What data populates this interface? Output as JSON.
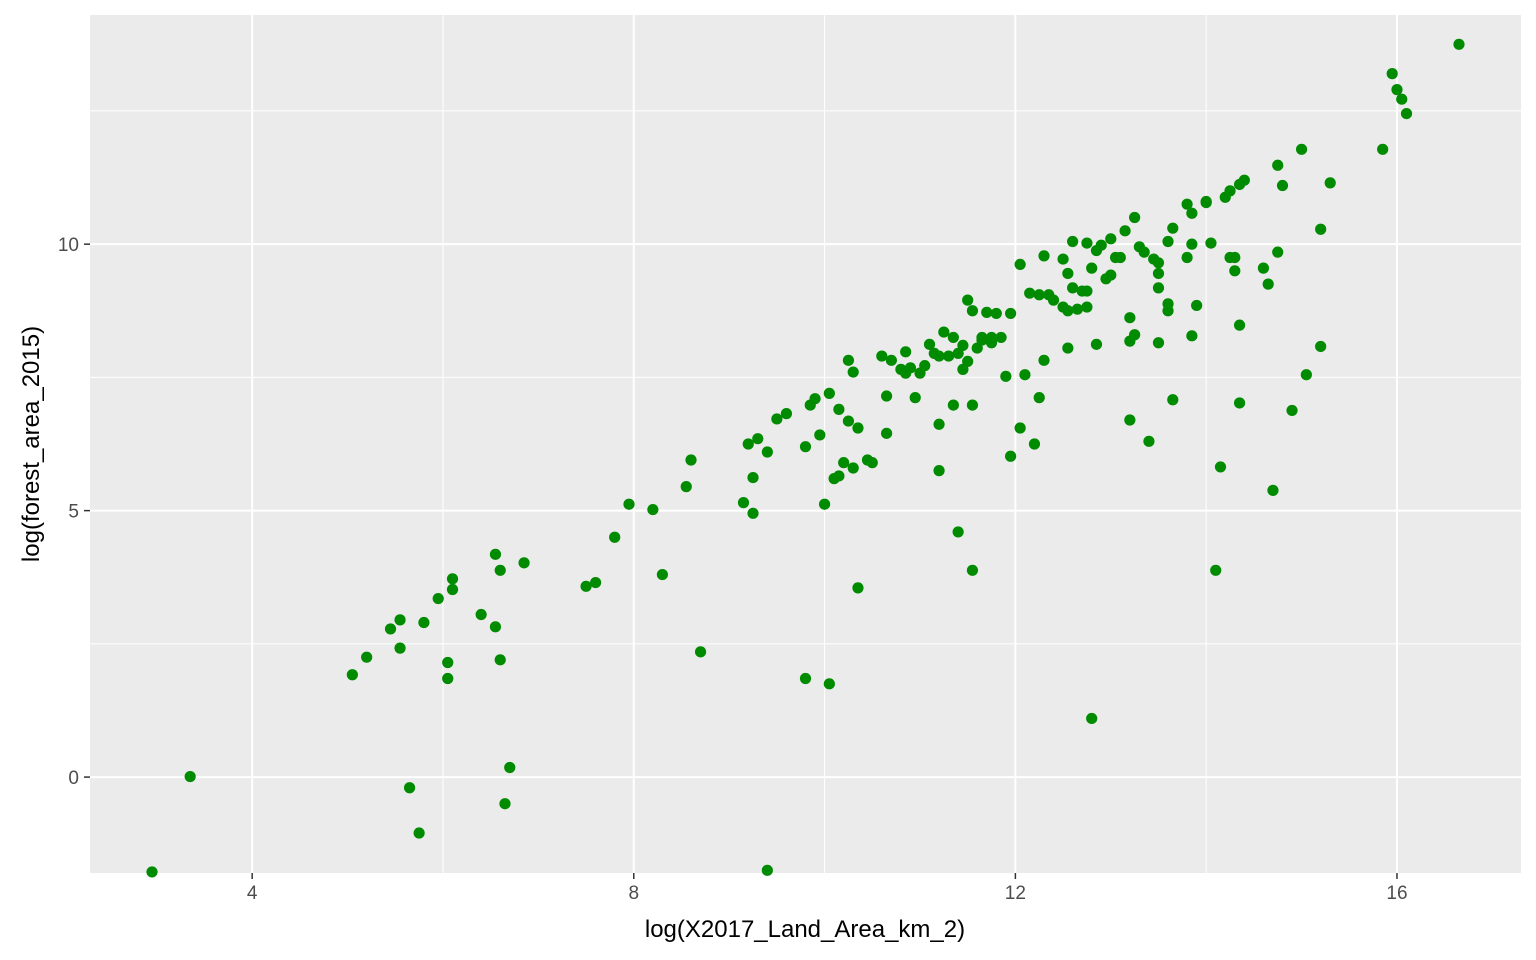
{
  "chart_data": {
    "type": "scatter",
    "xlabel": "log(X2017_Land_Area_km_2)",
    "ylabel": "log(forest_area_2015)",
    "xlim": [
      2.3,
      17.3
    ],
    "ylim": [
      -1.8,
      14.3
    ],
    "x_ticks": [
      {
        "value": 4,
        "label": "4"
      },
      {
        "value": 8,
        "label": "8"
      },
      {
        "value": 12,
        "label": "12"
      },
      {
        "value": 16,
        "label": "16"
      }
    ],
    "y_ticks": [
      {
        "value": 0,
        "label": "0"
      },
      {
        "value": 5,
        "label": "5"
      },
      {
        "value": 10,
        "label": "10"
      }
    ],
    "x_minor": [
      2,
      6,
      10,
      14
    ],
    "y_minor": [
      -2.5,
      2.5,
      7.5,
      12.5
    ],
    "grid": true,
    "panel_color": "#ebebeb",
    "point_color": "#008b00",
    "points": [
      [
        2.95,
        -1.78
      ],
      [
        3.35,
        0.01
      ],
      [
        5.05,
        1.92
      ],
      [
        5.2,
        2.25
      ],
      [
        5.45,
        2.78
      ],
      [
        5.55,
        2.95
      ],
      [
        5.55,
        2.42
      ],
      [
        5.65,
        -0.2
      ],
      [
        5.75,
        -1.05
      ],
      [
        5.8,
        2.9
      ],
      [
        5.95,
        3.35
      ],
      [
        6.05,
        2.15
      ],
      [
        6.05,
        1.85
      ],
      [
        6.1,
        3.72
      ],
      [
        6.1,
        3.52
      ],
      [
        6.4,
        3.05
      ],
      [
        6.55,
        4.18
      ],
      [
        6.55,
        2.82
      ],
      [
        6.6,
        3.88
      ],
      [
        6.6,
        2.2
      ],
      [
        6.65,
        -0.5
      ],
      [
        6.7,
        0.18
      ],
      [
        6.85,
        4.02
      ],
      [
        7.5,
        3.58
      ],
      [
        7.6,
        3.65
      ],
      [
        7.8,
        4.5
      ],
      [
        7.95,
        5.12
      ],
      [
        8.2,
        5.02
      ],
      [
        8.3,
        3.8
      ],
      [
        8.55,
        5.45
      ],
      [
        8.6,
        5.95
      ],
      [
        8.7,
        2.35
      ],
      [
        9.15,
        5.15
      ],
      [
        9.2,
        6.25
      ],
      [
        9.25,
        4.95
      ],
      [
        9.25,
        5.62
      ],
      [
        9.3,
        6.35
      ],
      [
        9.4,
        6.1
      ],
      [
        9.4,
        -1.75
      ],
      [
        9.5,
        6.72
      ],
      [
        9.6,
        6.82
      ],
      [
        9.8,
        6.2
      ],
      [
        9.8,
        1.85
      ],
      [
        9.85,
        6.98
      ],
      [
        9.9,
        7.1
      ],
      [
        9.95,
        6.42
      ],
      [
        10.0,
        5.12
      ],
      [
        10.05,
        7.2
      ],
      [
        10.05,
        1.75
      ],
      [
        10.1,
        5.6
      ],
      [
        10.15,
        6.9
      ],
      [
        10.15,
        5.65
      ],
      [
        10.2,
        5.9
      ],
      [
        10.25,
        6.68
      ],
      [
        10.25,
        7.82
      ],
      [
        10.3,
        7.6
      ],
      [
        10.3,
        5.8
      ],
      [
        10.35,
        6.55
      ],
      [
        10.35,
        3.55
      ],
      [
        10.45,
        5.95
      ],
      [
        10.5,
        5.9
      ],
      [
        10.6,
        7.9
      ],
      [
        10.65,
        7.15
      ],
      [
        10.65,
        6.45
      ],
      [
        10.7,
        7.82
      ],
      [
        10.8,
        7.65
      ],
      [
        10.85,
        7.58
      ],
      [
        10.85,
        7.98
      ],
      [
        10.9,
        7.68
      ],
      [
        10.95,
        7.12
      ],
      [
        11.0,
        7.58
      ],
      [
        11.05,
        7.72
      ],
      [
        11.1,
        8.12
      ],
      [
        11.15,
        7.95
      ],
      [
        11.2,
        6.62
      ],
      [
        11.2,
        5.75
      ],
      [
        11.2,
        7.9
      ],
      [
        11.25,
        8.35
      ],
      [
        11.3,
        7.9
      ],
      [
        11.35,
        6.98
      ],
      [
        11.35,
        8.25
      ],
      [
        11.4,
        7.95
      ],
      [
        11.4,
        4.6
      ],
      [
        11.45,
        7.65
      ],
      [
        11.45,
        8.1
      ],
      [
        11.5,
        7.8
      ],
      [
        11.5,
        8.95
      ],
      [
        11.55,
        8.75
      ],
      [
        11.55,
        6.98
      ],
      [
        11.55,
        3.88
      ],
      [
        11.6,
        8.05
      ],
      [
        11.65,
        8.2
      ],
      [
        11.65,
        8.25
      ],
      [
        11.7,
        8.72
      ],
      [
        11.75,
        8.15
      ],
      [
        11.75,
        8.25
      ],
      [
        11.8,
        8.7
      ],
      [
        11.85,
        8.25
      ],
      [
        11.9,
        7.52
      ],
      [
        11.95,
        6.02
      ],
      [
        11.95,
        8.7
      ],
      [
        12.05,
        6.55
      ],
      [
        12.05,
        9.62
      ],
      [
        12.1,
        7.55
      ],
      [
        12.15,
        9.08
      ],
      [
        12.2,
        6.25
      ],
      [
        12.25,
        7.12
      ],
      [
        12.25,
        9.05
      ],
      [
        12.3,
        9.78
      ],
      [
        12.3,
        7.82
      ],
      [
        12.35,
        9.05
      ],
      [
        12.4,
        8.95
      ],
      [
        12.5,
        8.82
      ],
      [
        12.5,
        9.72
      ],
      [
        12.55,
        9.45
      ],
      [
        12.55,
        8.05
      ],
      [
        12.55,
        8.75
      ],
      [
        12.6,
        10.05
      ],
      [
        12.6,
        9.18
      ],
      [
        12.65,
        8.78
      ],
      [
        12.7,
        9.12
      ],
      [
        12.75,
        8.82
      ],
      [
        12.75,
        9.12
      ],
      [
        12.75,
        10.02
      ],
      [
        12.8,
        9.55
      ],
      [
        12.8,
        1.1
      ],
      [
        12.85,
        8.12
      ],
      [
        12.85,
        9.88
      ],
      [
        12.9,
        9.98
      ],
      [
        12.95,
        9.35
      ],
      [
        13.0,
        9.42
      ],
      [
        13.0,
        10.1
      ],
      [
        13.05,
        9.75
      ],
      [
        13.1,
        9.75
      ],
      [
        13.15,
        10.25
      ],
      [
        13.2,
        8.62
      ],
      [
        13.2,
        8.18
      ],
      [
        13.2,
        6.7
      ],
      [
        13.25,
        10.5
      ],
      [
        13.25,
        8.3
      ],
      [
        13.3,
        9.95
      ],
      [
        13.35,
        9.85
      ],
      [
        13.4,
        6.3
      ],
      [
        13.45,
        9.72
      ],
      [
        13.5,
        9.65
      ],
      [
        13.5,
        9.45
      ],
      [
        13.5,
        9.18
      ],
      [
        13.5,
        8.15
      ],
      [
        13.6,
        10.05
      ],
      [
        13.6,
        8.88
      ],
      [
        13.6,
        8.75
      ],
      [
        13.65,
        10.3
      ],
      [
        13.65,
        7.08
      ],
      [
        13.8,
        10.75
      ],
      [
        13.8,
        9.75
      ],
      [
        13.85,
        10.58
      ],
      [
        13.85,
        10.0
      ],
      [
        13.85,
        8.28
      ],
      [
        13.9,
        8.85
      ],
      [
        14.0,
        10.78
      ],
      [
        14.0,
        10.8
      ],
      [
        14.05,
        10.02
      ],
      [
        14.1,
        3.88
      ],
      [
        14.15,
        5.82
      ],
      [
        14.2,
        10.88
      ],
      [
        14.25,
        11.0
      ],
      [
        14.25,
        9.75
      ],
      [
        14.3,
        9.75
      ],
      [
        14.3,
        9.5
      ],
      [
        14.35,
        11.12
      ],
      [
        14.35,
        8.48
      ],
      [
        14.35,
        7.02
      ],
      [
        14.4,
        11.2
      ],
      [
        14.6,
        9.55
      ],
      [
        14.65,
        9.25
      ],
      [
        14.7,
        5.38
      ],
      [
        14.75,
        11.48
      ],
      [
        14.75,
        9.85
      ],
      [
        14.8,
        11.1
      ],
      [
        14.9,
        6.88
      ],
      [
        15.0,
        11.78
      ],
      [
        15.05,
        7.55
      ],
      [
        15.2,
        10.28
      ],
      [
        15.2,
        8.08
      ],
      [
        15.3,
        11.15
      ],
      [
        15.85,
        11.78
      ],
      [
        15.95,
        13.2
      ],
      [
        16.0,
        12.9
      ],
      [
        16.05,
        12.72
      ],
      [
        16.1,
        12.45
      ],
      [
        16.65,
        13.75
      ]
    ]
  }
}
